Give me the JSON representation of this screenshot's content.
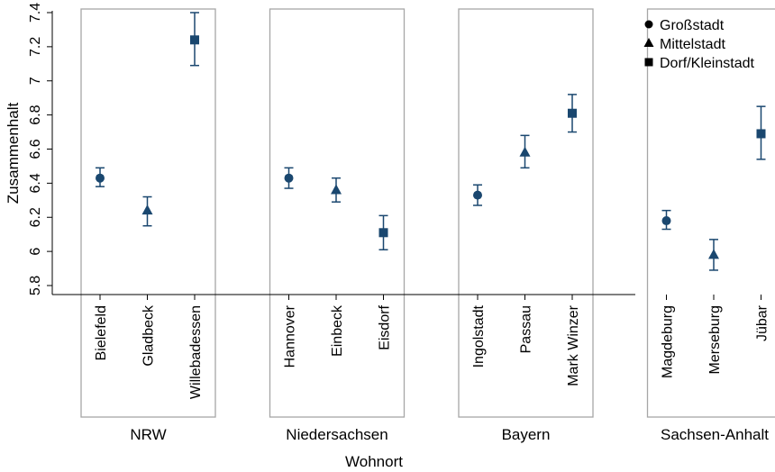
{
  "chart_data": {
    "type": "scatter",
    "subtype": "point-estimates-with-confidence-intervals",
    "ylabel": "Zusammenhalt",
    "xlabel": "Wohnort",
    "ylim": [
      5.8,
      7.4
    ],
    "yticks": [
      5.8,
      6,
      6.2,
      6.4,
      6.6,
      6.8,
      7,
      7.2,
      7.4
    ],
    "ytick_labels": [
      "5.8",
      "6",
      "6.2",
      "6.4",
      "6.6",
      "6.8",
      "7",
      "7.2",
      "7.4"
    ],
    "grid": false,
    "legend_position": "top-right",
    "legend": [
      {
        "label": "Großstadt",
        "marker": "circle"
      },
      {
        "label": "Mittelstadt",
        "marker": "triangle"
      },
      {
        "label": "Dorf/Kleinstadt",
        "marker": "square"
      }
    ],
    "marker_color": "#1a476f",
    "groups": [
      {
        "name": "NRW",
        "points": [
          {
            "label": "Bielefeld",
            "type": "circle",
            "value": 6.43,
            "lo": 6.38,
            "hi": 6.49
          },
          {
            "label": "Gladbeck",
            "type": "triangle",
            "value": 6.24,
            "lo": 6.15,
            "hi": 6.32
          },
          {
            "label": "Willebadessen",
            "type": "square",
            "value": 7.24,
            "lo": 7.09,
            "hi": 7.4
          }
        ]
      },
      {
        "name": "Niedersachsen",
        "points": [
          {
            "label": "Hannover",
            "type": "circle",
            "value": 6.43,
            "lo": 6.37,
            "hi": 6.49
          },
          {
            "label": "Einbeck",
            "type": "triangle",
            "value": 6.36,
            "lo": 6.29,
            "hi": 6.43
          },
          {
            "label": "Eisdorf",
            "type": "square",
            "value": 6.11,
            "lo": 6.01,
            "hi": 6.21
          }
        ]
      },
      {
        "name": "Bayern",
        "points": [
          {
            "label": "Ingolstadt",
            "type": "circle",
            "value": 6.33,
            "lo": 6.27,
            "hi": 6.39
          },
          {
            "label": "Passau",
            "type": "triangle",
            "value": 6.58,
            "lo": 6.49,
            "hi": 6.68
          },
          {
            "label": "Mark Winzer",
            "type": "square",
            "value": 6.81,
            "lo": 6.7,
            "hi": 6.92
          }
        ]
      },
      {
        "name": "Sachsen-Anhalt",
        "points": [
          {
            "label": "Magdeburg",
            "type": "circle",
            "value": 6.18,
            "lo": 6.13,
            "hi": 6.24
          },
          {
            "label": "Merseburg",
            "type": "triangle",
            "value": 5.98,
            "lo": 5.89,
            "hi": 6.07
          },
          {
            "label": "Jübar",
            "type": "square",
            "value": 6.69,
            "lo": 6.54,
            "hi": 6.85
          }
        ]
      }
    ]
  }
}
